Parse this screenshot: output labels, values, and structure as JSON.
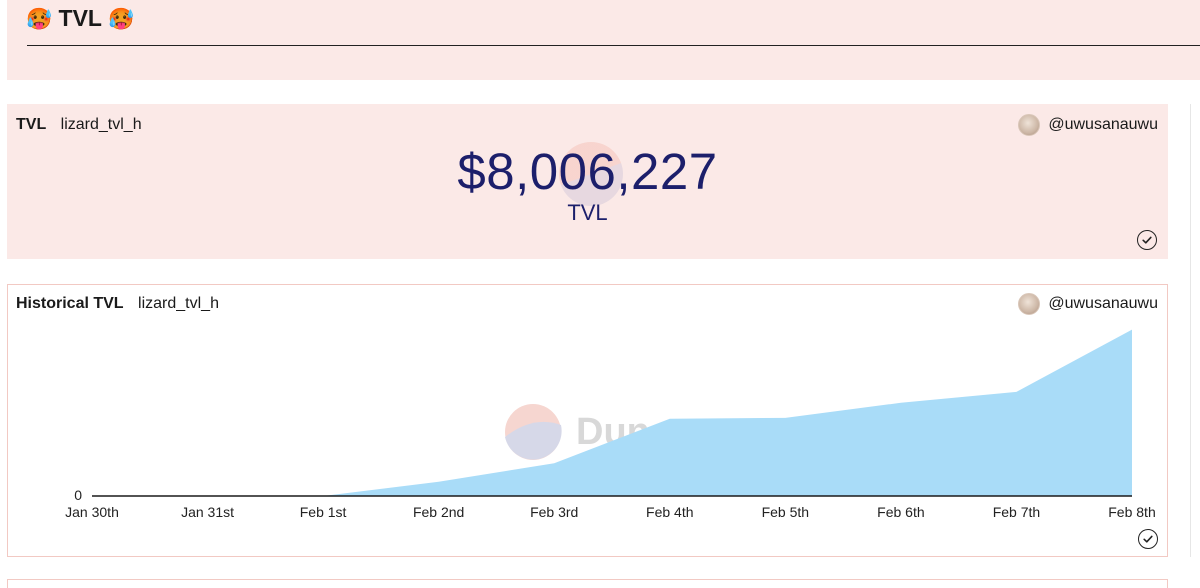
{
  "header": {
    "emoji_left": "🥵",
    "title": "TVL",
    "emoji_right": "🥵"
  },
  "counter_card": {
    "title": "TVL",
    "query": "lizard_tvl_h",
    "author": "@uwusanauwu",
    "value": "$8,006,227",
    "label": "TVL",
    "status_icon": "check-circle-icon"
  },
  "chart_card": {
    "title": "Historical TVL",
    "query": "lizard_tvl_h",
    "author": "@uwusanauwu",
    "watermark": "Dune",
    "status_icon": "check-circle-icon"
  },
  "colors": {
    "panel_bg": "#fbe9e7",
    "counter_text": "#1c1f6b",
    "area_fill": "#a9dcf8"
  },
  "chart_data": {
    "type": "area",
    "categories": [
      "Jan 30th",
      "Jan 31st",
      "Feb 1st",
      "Feb 2nd",
      "Feb 3rd",
      "Feb 4th",
      "Feb 5th",
      "Feb 6th",
      "Feb 7th",
      "Feb 8th"
    ],
    "y_tick_labels": [
      "0"
    ],
    "series": [
      {
        "values": [
          0,
          0,
          0,
          0.17,
          0.39,
          0.92,
          0.93,
          1.11,
          1.24,
          1.98
        ]
      }
    ],
    "y_scale_note_max": 2.0,
    "grid": false,
    "legend": "none"
  }
}
